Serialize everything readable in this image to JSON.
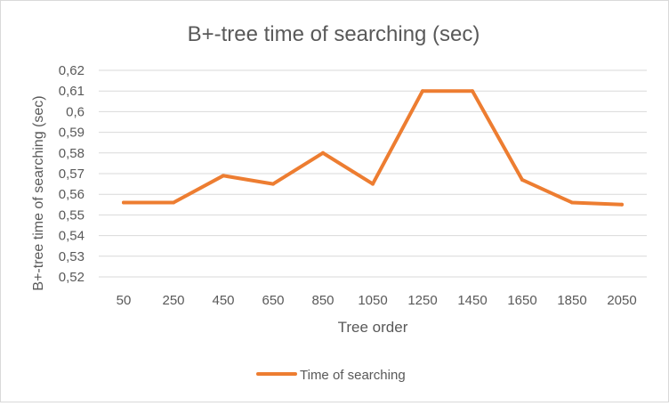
{
  "chart_data": {
    "type": "line",
    "title": "B+-tree time of searching (sec)",
    "xlabel": "Tree order",
    "ylabel": "B+-tree time of searching (sec)",
    "categories": [
      "50",
      "250",
      "450",
      "650",
      "850",
      "1050",
      "1250",
      "1450",
      "1650",
      "1850",
      "2050"
    ],
    "series": [
      {
        "name": "Time of searching",
        "color": "#ED7D31",
        "values": [
          0.556,
          0.556,
          0.569,
          0.565,
          0.58,
          0.565,
          0.61,
          0.61,
          0.567,
          0.556,
          0.555
        ]
      }
    ],
    "ylim": [
      0.52,
      0.62
    ],
    "ytick_step": 0.01,
    "y_tick_labels": [
      "0,52",
      "0,53",
      "0,54",
      "0,55",
      "0,56",
      "0,57",
      "0,58",
      "0,59",
      "0,6",
      "0,61",
      "0,62"
    ],
    "grid": true,
    "legend": "bottom",
    "colors": {
      "grid": "#d9d9d9",
      "text": "#595959"
    }
  }
}
